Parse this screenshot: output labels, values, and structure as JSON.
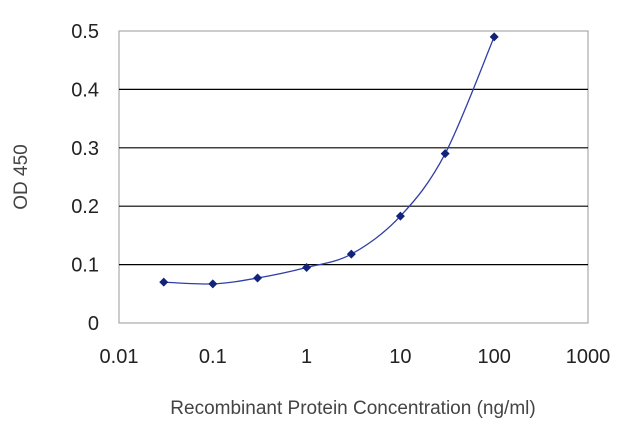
{
  "chart_data": {
    "type": "line",
    "xlabel": "Recombinant Protein Concentration (ng/ml)",
    "ylabel": "OD 450",
    "x_scale": "log",
    "xlim": [
      0.01,
      1000
    ],
    "ylim": [
      0,
      0.5
    ],
    "x_tick_labels": [
      "0.01",
      "0.1",
      "1",
      "10",
      "100",
      "1000"
    ],
    "y_tick_labels": [
      "0",
      "0.1",
      "0.2",
      "0.3",
      "0.4",
      "0.5"
    ],
    "grid": "horizontal",
    "series": [
      {
        "x": [
          0.03,
          0.1,
          0.3,
          1,
          3,
          10,
          30,
          100
        ],
        "y": [
          0.07,
          0.067,
          0.077,
          0.095,
          0.118,
          0.183,
          0.29,
          0.49
        ]
      }
    ],
    "colors": {
      "line": "#2f3fa6",
      "marker": "#12237a",
      "grid": "#000000",
      "frame": "#9a9a9a"
    }
  }
}
